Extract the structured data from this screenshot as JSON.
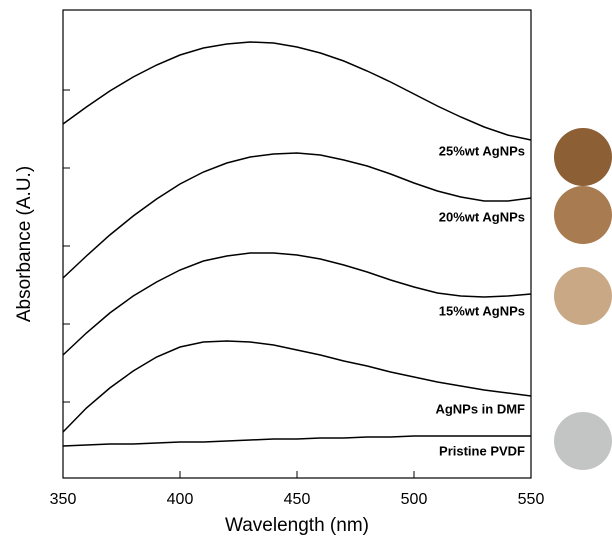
{
  "chart_data": {
    "type": "line",
    "x_label": "Wavelength (nm)",
    "y_label": "Absorbance (A.U.)",
    "x": [
      350,
      360,
      370,
      380,
      390,
      400,
      410,
      420,
      430,
      440,
      450,
      460,
      470,
      480,
      490,
      500,
      510,
      520,
      530,
      540,
      550
    ],
    "series": [
      {
        "name": "25%wt AgNPs",
        "color": "#000000",
        "values": [
          354,
          371,
          387,
          401,
          413,
          423,
          430,
          434,
          436,
          435,
          431,
          425,
          417,
          407,
          396,
          384,
          372,
          361,
          351,
          343,
          338
        ]
      },
      {
        "name": "20%wt AgNPs",
        "color": "#000000",
        "values": [
          200,
          222,
          243,
          262,
          279,
          294,
          306,
          315,
          321,
          324,
          325,
          323,
          318,
          312,
          304,
          295,
          287,
          281,
          277,
          277,
          280
        ]
      },
      {
        "name": "15%wt AgNPs",
        "color": "#000000",
        "values": [
          123,
          145,
          165,
          182,
          196,
          208,
          217,
          222,
          225,
          225,
          223,
          219,
          213,
          206,
          198,
          191,
          185,
          182,
          181,
          182,
          184
        ]
      },
      {
        "name": "AgNPs in DMF",
        "color": "#000000",
        "values": [
          46,
          70,
          90,
          107,
          121,
          131,
          136,
          137,
          136,
          133,
          128,
          123,
          117,
          112,
          106,
          101,
          96,
          92,
          88,
          85,
          82
        ]
      },
      {
        "name": "Pristine PVDF",
        "color": "#000000",
        "values": [
          32,
          33,
          34,
          34,
          35,
          36,
          36,
          37,
          38,
          39,
          39,
          40,
          40,
          41,
          41,
          42,
          42,
          42,
          42,
          42,
          42
        ]
      }
    ],
    "xlim": [
      350,
      550
    ],
    "xticks": [
      350,
      400,
      450,
      500,
      550
    ],
    "ylim": [
      0,
      468
    ],
    "yticks": [
      76,
      154,
      232,
      310,
      388
    ]
  }
}
